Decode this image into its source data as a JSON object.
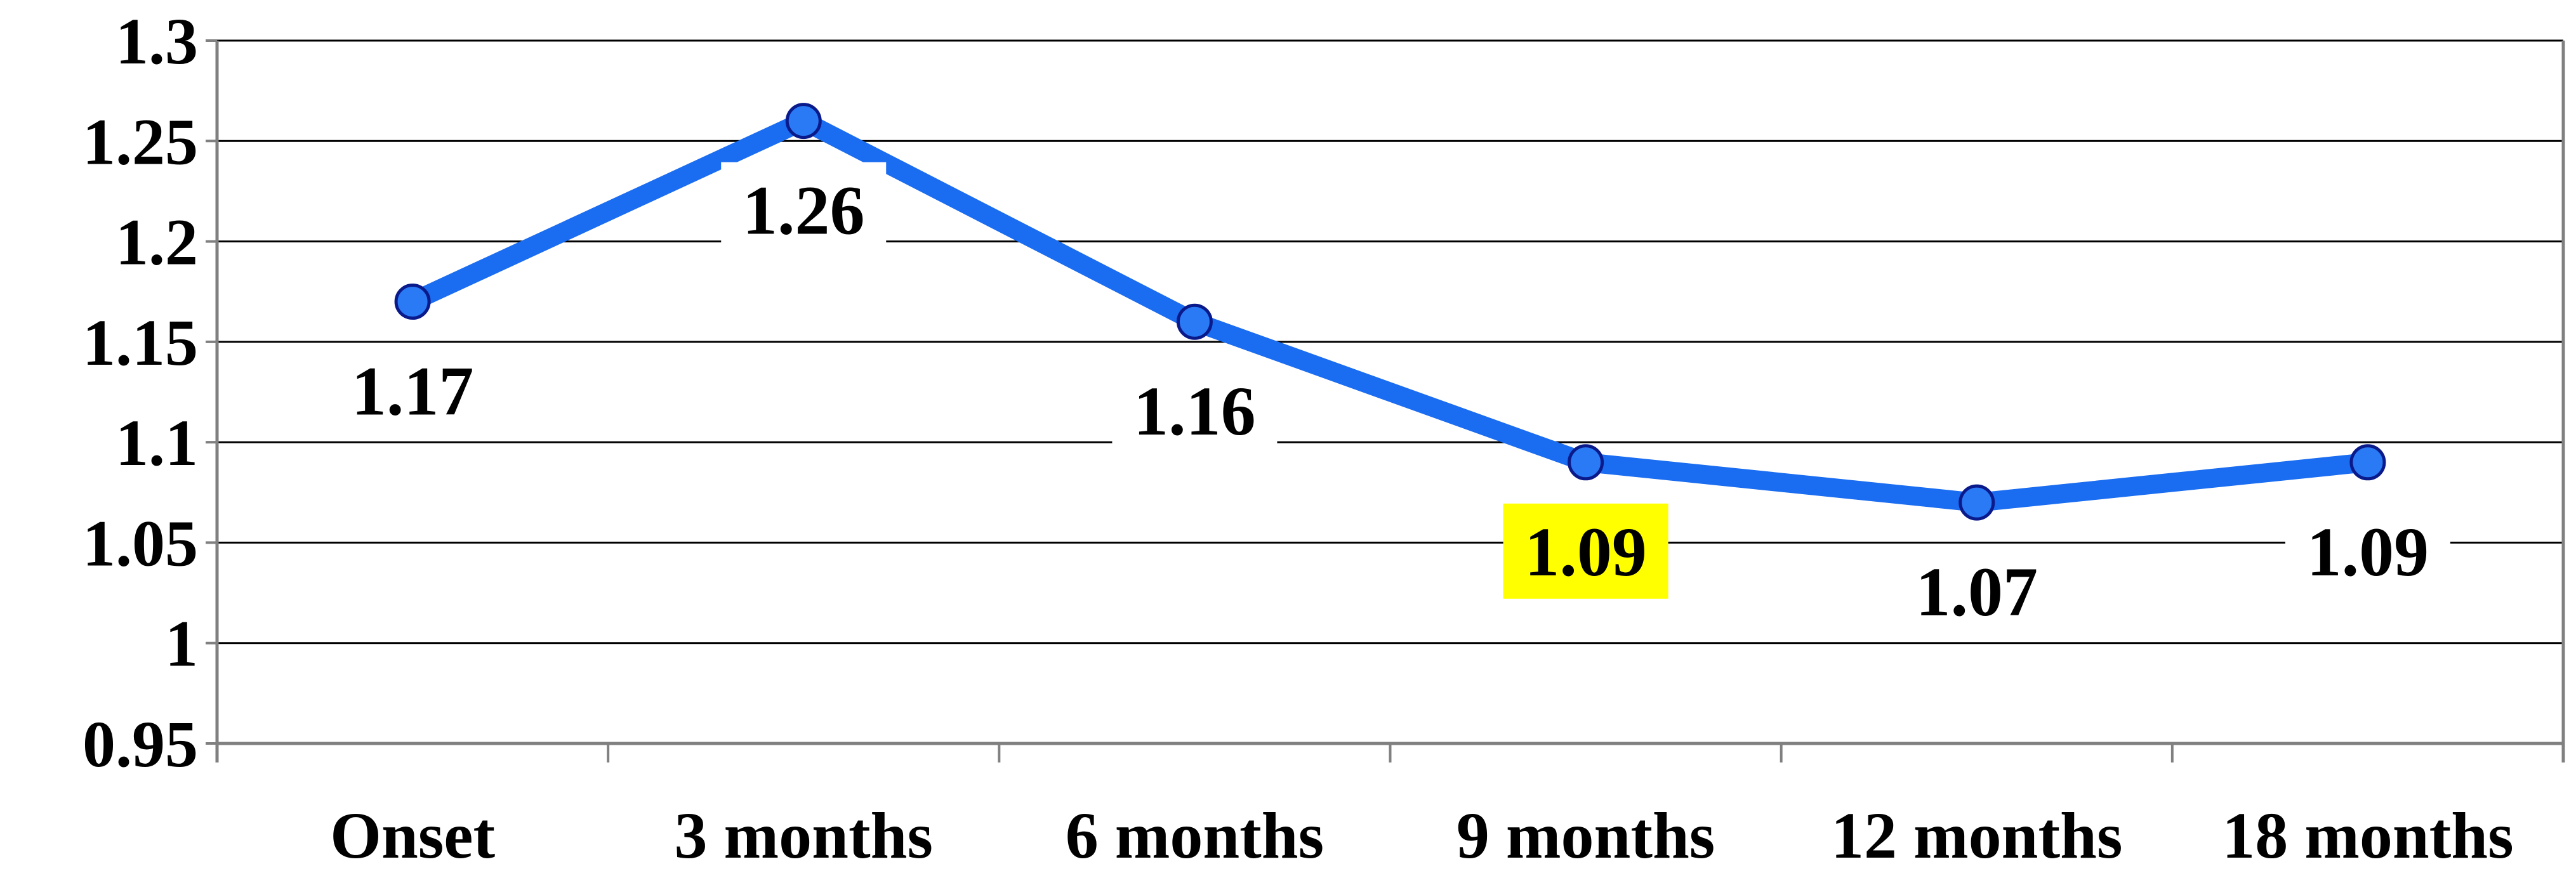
{
  "chart_data": {
    "type": "line",
    "title": "",
    "xlabel": "",
    "ylabel": "",
    "categories": [
      "Onset",
      "3 months",
      "6 months",
      "9 months",
      "12 months",
      "18 months"
    ],
    "series": [
      {
        "values": [
          1.17,
          1.26,
          1.16,
          1.09,
          1.07,
          1.09
        ],
        "labels": [
          "1.17",
          "1.26",
          "1.16",
          "1.09",
          "1.07",
          "1.09"
        ],
        "color": "#1a6cf0",
        "marker_color": "#2a7af5",
        "marker_edge": "#0a1a8a"
      }
    ],
    "ylim": [
      0.95,
      1.3
    ],
    "y_ticks": [
      0.95,
      1,
      1.05,
      1.1,
      1.15,
      1.2,
      1.25,
      1.3
    ],
    "y_tick_labels": [
      "0.95",
      "1",
      "1.05",
      "1.1",
      "1.15",
      "1.2",
      "1.25",
      "1.3"
    ],
    "grid": true,
    "legend": "none",
    "highlighted_label": {
      "index": 3,
      "background": "#ffff00"
    }
  }
}
